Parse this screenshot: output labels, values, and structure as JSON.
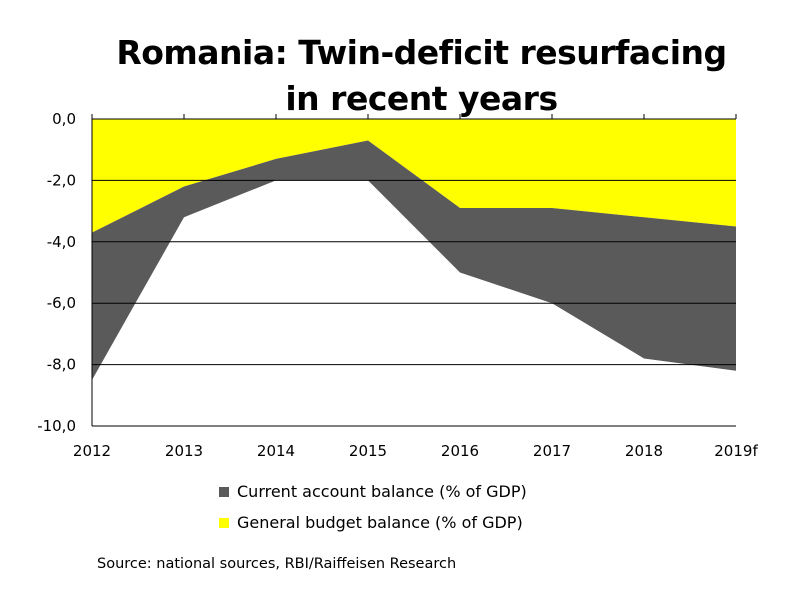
{
  "title_line1": "Romania: Twin-deficit resurfacing",
  "title_line2": "in recent years",
  "source": "Source: national sources, RBI/Raiffeisen Research",
  "colors": {
    "current_account": "#5a5a5a",
    "budget": "#ffff00",
    "grid": "#000000"
  },
  "chart_data": {
    "type": "area",
    "categories": [
      "2012",
      "2013",
      "2014",
      "2015",
      "2016",
      "2017",
      "2018",
      "2019f"
    ],
    "y_tick_labels": [
      "0,0",
      "-2,0",
      "-4,0",
      "-6,0",
      "-8,0",
      "-10,0"
    ],
    "ylim": [
      -10,
      0
    ],
    "grid": true,
    "legend_position": "bottom",
    "series": [
      {
        "name": "Current account balance (% of GDP)",
        "values": [
          -8.5,
          -3.2,
          -2.0,
          -2.0,
          -5.0,
          -6.0,
          -7.8,
          -8.2
        ]
      },
      {
        "name": "General budget balance (% of GDP)",
        "values": [
          -3.7,
          -2.2,
          -1.3,
          -0.7,
          -2.9,
          -2.9,
          -3.2,
          -3.5
        ]
      }
    ]
  }
}
